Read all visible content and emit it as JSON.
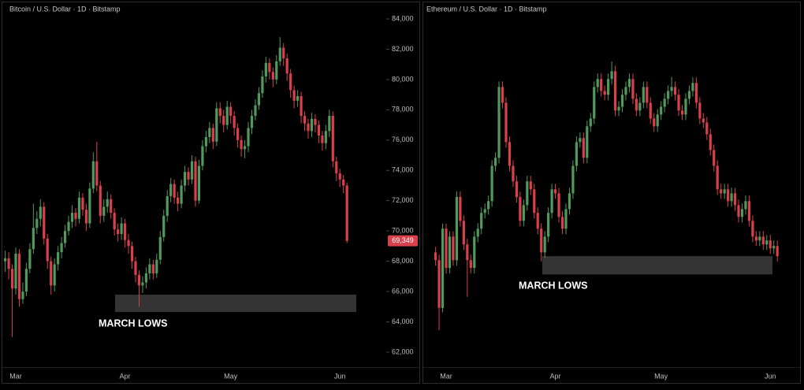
{
  "chart_data": [
    {
      "type": "candlestick",
      "title": "Bitcoin / U.S. Dollar · 1D · Bitstamp",
      "categories": [
        null,
        null,
        null,
        "Mar",
        null,
        null,
        null,
        null,
        null,
        null,
        null,
        null,
        null,
        null,
        null,
        null,
        null,
        null,
        null,
        null,
        null,
        null,
        null,
        null,
        null,
        null,
        null,
        null,
        null,
        null,
        null,
        null,
        null,
        null,
        "Apr",
        null,
        null,
        null,
        null,
        null,
        null,
        null,
        null,
        null,
        null,
        null,
        null,
        null,
        null,
        null,
        null,
        null,
        null,
        null,
        null,
        null,
        null,
        null,
        null,
        null,
        null,
        null,
        null,
        null,
        "May",
        null,
        null,
        null,
        null,
        null,
        null,
        null,
        null,
        null,
        null,
        null,
        null,
        null,
        null,
        null,
        null,
        null,
        null,
        null,
        null,
        null,
        null,
        null,
        null,
        null,
        null,
        null,
        null,
        null,
        null,
        "Jun",
        null,
        null
      ],
      "open": [
        68000,
        68200,
        67500,
        66200,
        68500,
        65500,
        66000,
        67500,
        68800,
        70200,
        70800,
        71600,
        69500,
        68000,
        66400,
        67800,
        68600,
        69200,
        70000,
        70600,
        71200,
        70800,
        72200,
        71400,
        70500,
        72800,
        74600,
        73000,
        71000,
        71600,
        72100,
        71200,
        70100,
        69800,
        70500,
        69400,
        69000,
        68000,
        67100,
        66400,
        66600,
        67200,
        67800,
        67200,
        68100,
        69600,
        71000,
        72300,
        73100,
        72200,
        71800,
        73000,
        73900,
        73400,
        74600,
        72000,
        74300,
        75600,
        76200,
        76800,
        75900,
        78100,
        77600,
        77000,
        78200,
        77600,
        76800,
        76000,
        75400,
        75600,
        76800,
        77600,
        78300,
        79100,
        80200,
        81100,
        80500,
        80000,
        81200,
        82100,
        81400,
        80400,
        79300,
        78600,
        78900,
        77600,
        77100,
        76600,
        77400,
        77000,
        76300,
        75800,
        76600,
        77600,
        74600,
        73800,
        73400,
        73000
      ],
      "high": [
        68700,
        68600,
        67800,
        68900,
        68800,
        66600,
        67900,
        69200,
        71800,
        71300,
        72100,
        71900,
        69800,
        68300,
        68200,
        69000,
        69600,
        70400,
        71000,
        71700,
        71500,
        72600,
        72500,
        71800,
        73200,
        75200,
        75900,
        73300,
        72100,
        72600,
        72400,
        71500,
        70500,
        70900,
        70800,
        69800,
        69300,
        68300,
        67400,
        67000,
        67600,
        68200,
        68100,
        68500,
        70000,
        71400,
        72700,
        73500,
        73400,
        72600,
        73400,
        74300,
        74200,
        75000,
        74900,
        74700,
        76000,
        76600,
        77200,
        77100,
        78500,
        78500,
        78000,
        78600,
        78500,
        77900,
        77100,
        76300,
        76000,
        77200,
        78000,
        78700,
        79500,
        80600,
        81500,
        81400,
        80800,
        81600,
        82800,
        82400,
        81700,
        80700,
        79600,
        79300,
        79200,
        77900,
        77400,
        77800,
        77700,
        77300,
        76600,
        77000,
        78000,
        77900,
        74900,
        74100,
        73700,
        73200
      ],
      "low": [
        67300,
        66800,
        63000,
        65800,
        65000,
        65200,
        65700,
        67200,
        68500,
        69800,
        70300,
        69100,
        67500,
        65800,
        66000,
        67400,
        68200,
        68900,
        69700,
        70200,
        70300,
        70500,
        71000,
        70000,
        70200,
        72500,
        72600,
        70500,
        70600,
        71200,
        70800,
        69700,
        69300,
        69400,
        68900,
        68500,
        67500,
        66600,
        65000,
        65900,
        66200,
        66800,
        66800,
        66900,
        67800,
        69300,
        70600,
        71900,
        71800,
        71300,
        71500,
        72600,
        73000,
        73100,
        71600,
        71800,
        74000,
        75200,
        75800,
        75400,
        75600,
        77100,
        76500,
        76700,
        77100,
        76300,
        75500,
        74900,
        74800,
        75200,
        76400,
        77300,
        78000,
        78800,
        79800,
        80000,
        79500,
        79700,
        80900,
        80900,
        79900,
        78800,
        78100,
        78200,
        77100,
        76600,
        76100,
        76200,
        76500,
        75800,
        75300,
        75400,
        76200,
        74200,
        73300,
        72900,
        72500,
        69200
      ],
      "close": [
        68200,
        67500,
        66200,
        68500,
        65500,
        66000,
        67500,
        68800,
        70200,
        70800,
        71600,
        69500,
        68000,
        66400,
        67800,
        68600,
        69200,
        70000,
        70600,
        71200,
        70800,
        72200,
        71400,
        70500,
        72800,
        74600,
        73000,
        71000,
        71600,
        72100,
        71200,
        70100,
        69800,
        70500,
        69400,
        69000,
        68000,
        67100,
        66400,
        66600,
        67200,
        67800,
        67200,
        68100,
        69600,
        71000,
        72300,
        73100,
        72200,
        71800,
        73000,
        73900,
        73400,
        74600,
        72000,
        74300,
        75600,
        76200,
        76800,
        75900,
        78100,
        77600,
        77000,
        78200,
        77600,
        76800,
        76000,
        75400,
        75600,
        76800,
        77600,
        78300,
        79100,
        80200,
        81100,
        80500,
        80000,
        81200,
        82100,
        81400,
        80400,
        79300,
        78600,
        78900,
        77600,
        77100,
        76600,
        77400,
        77000,
        76300,
        75800,
        76600,
        77600,
        74600,
        73800,
        73400,
        73000,
        69349
      ],
      "last_label": "69,349",
      "up_color": "#4f9a5c",
      "down_color": "#d8404c",
      "ylim": [
        60800,
        85250
      ],
      "yticks": [
        {
          "value": 62000,
          "label": "62,000"
        },
        {
          "value": 64000,
          "label": "64,000"
        },
        {
          "value": 66000,
          "label": "66,000"
        },
        {
          "value": 68000,
          "label": "68,000"
        },
        {
          "value": 70000,
          "label": "70,000"
        },
        {
          "value": 72000,
          "label": "72,000"
        },
        {
          "value": 74000,
          "label": "74,000"
        },
        {
          "value": 76000,
          "label": "76,000"
        },
        {
          "value": 78000,
          "label": "78,000"
        },
        {
          "value": 80000,
          "label": "80,000"
        },
        {
          "value": 82000,
          "label": "82,000"
        },
        {
          "value": 84000,
          "label": "84,000"
        }
      ],
      "annotation": {
        "text": "MARCH LOWS",
        "range": [
          64650,
          65800
        ]
      }
    },
    {
      "type": "candlestick",
      "title": "Ethereum / U.S. Dollar · 1D · Bitstamp",
      "categories": [
        null,
        null,
        null,
        "Mar",
        null,
        null,
        null,
        null,
        null,
        null,
        null,
        null,
        null,
        null,
        null,
        null,
        null,
        null,
        null,
        null,
        null,
        null,
        null,
        null,
        null,
        null,
        null,
        null,
        null,
        null,
        null,
        null,
        null,
        null,
        "Apr",
        null,
        null,
        null,
        null,
        null,
        null,
        null,
        null,
        null,
        null,
        null,
        null,
        null,
        null,
        null,
        null,
        null,
        null,
        null,
        null,
        null,
        null,
        null,
        null,
        null,
        null,
        null,
        null,
        null,
        "May",
        null,
        null,
        null,
        null,
        null,
        null,
        null,
        null,
        null,
        null,
        null,
        null,
        null,
        null,
        null,
        null,
        null,
        null,
        null,
        null,
        null,
        null,
        null,
        null,
        null,
        null,
        null,
        null,
        null,
        null,
        "Jun",
        null,
        null
      ],
      "open": [
        3150,
        3115,
        2900,
        3257,
        3080,
        3221,
        3115,
        3400,
        3292,
        3186,
        3115,
        3080,
        3221,
        3257,
        3328,
        3345,
        3381,
        3540,
        3576,
        3895,
        3824,
        3647,
        3540,
        3470,
        3399,
        3292,
        3363,
        3470,
        3434,
        3328,
        3257,
        3150,
        3221,
        3328,
        3434,
        3416,
        3310,
        3257,
        3345,
        3416,
        3540,
        3647,
        3665,
        3576,
        3718,
        3753,
        3895,
        3931,
        3877,
        3860,
        3931,
        3966,
        3789,
        3806,
        3860,
        3895,
        3931,
        3842,
        3789,
        3824,
        3895,
        3824,
        3753,
        3718,
        3771,
        3806,
        3842,
        3877,
        3895,
        3860,
        3789,
        3771,
        3842,
        3877,
        3913,
        3824,
        3753,
        3735,
        3682,
        3611,
        3540,
        3434,
        3416,
        3434,
        3381,
        3416,
        3363,
        3310,
        3345,
        3381,
        3292,
        3221,
        3204,
        3221,
        3186,
        3204,
        3168,
        3179
      ],
      "high": [
        3175,
        3140,
        3280,
        3280,
        3245,
        3245,
        3425,
        3425,
        3317,
        3211,
        3140,
        3246,
        3282,
        3353,
        3370,
        3406,
        3565,
        3601,
        3920,
        3920,
        3849,
        3672,
        3565,
        3495,
        3424,
        3388,
        3495,
        3495,
        3459,
        3353,
        3282,
        3246,
        3353,
        3459,
        3459,
        3441,
        3335,
        3370,
        3441,
        3565,
        3672,
        3690,
        3690,
        3743,
        3778,
        3920,
        3956,
        3956,
        3902,
        3956,
        4010,
        3991,
        3831,
        3885,
        3920,
        3956,
        3956,
        3867,
        3849,
        3920,
        3920,
        3849,
        3778,
        3796,
        3831,
        3867,
        3902,
        3940,
        3920,
        3885,
        3814,
        3867,
        3902,
        3938,
        3938,
        3849,
        3778,
        3760,
        3707,
        3636,
        3565,
        3459,
        3459,
        3459,
        3441,
        3441,
        3388,
        3370,
        3406,
        3406,
        3317,
        3246,
        3246,
        3246,
        3229,
        3229,
        3204,
        3204
      ],
      "low": [
        3090,
        2800,
        2880,
        3055,
        3055,
        3090,
        3090,
        3267,
        3161,
        2950,
        3055,
        3055,
        3196,
        3232,
        3303,
        3320,
        3356,
        3515,
        3551,
        3799,
        3622,
        3515,
        3445,
        3374,
        3267,
        3267,
        3338,
        3409,
        3303,
        3232,
        3110,
        3125,
        3196,
        3303,
        3391,
        3285,
        3232,
        3232,
        3320,
        3391,
        3515,
        3622,
        3551,
        3551,
        3693,
        3728,
        3870,
        3852,
        3835,
        3835,
        3906,
        3764,
        3764,
        3781,
        3835,
        3870,
        3817,
        3764,
        3764,
        3799,
        3799,
        3728,
        3693,
        3693,
        3746,
        3781,
        3817,
        3852,
        3835,
        3764,
        3746,
        3746,
        3817,
        3852,
        3799,
        3728,
        3710,
        3657,
        3586,
        3515,
        3409,
        3391,
        3391,
        3356,
        3356,
        3338,
        3285,
        3285,
        3320,
        3267,
        3196,
        3179,
        3179,
        3161,
        3161,
        3143,
        3143,
        3108
      ],
      "close": [
        3115,
        2900,
        3257,
        3080,
        3221,
        3115,
        3400,
        3292,
        3186,
        3115,
        3080,
        3221,
        3257,
        3328,
        3345,
        3381,
        3540,
        3576,
        3895,
        3824,
        3647,
        3540,
        3470,
        3399,
        3292,
        3363,
        3470,
        3434,
        3328,
        3257,
        3150,
        3221,
        3328,
        3434,
        3416,
        3310,
        3257,
        3345,
        3416,
        3540,
        3647,
        3665,
        3576,
        3718,
        3753,
        3895,
        3931,
        3877,
        3860,
        3931,
        3966,
        3789,
        3806,
        3860,
        3895,
        3931,
        3842,
        3789,
        3824,
        3895,
        3824,
        3753,
        3718,
        3771,
        3806,
        3842,
        3877,
        3895,
        3860,
        3789,
        3771,
        3842,
        3877,
        3913,
        3824,
        3753,
        3735,
        3682,
        3611,
        3540,
        3434,
        3416,
        3434,
        3381,
        3416,
        3363,
        3310,
        3345,
        3381,
        3292,
        3221,
        3204,
        3221,
        3186,
        3204,
        3168,
        3179,
        3133
      ],
      "up_color": "#4f9a5c",
      "down_color": "#d8404c",
      "annotation": {
        "text": "MARCH LOWS",
        "range": [
          3051,
          3133
        ]
      }
    }
  ]
}
